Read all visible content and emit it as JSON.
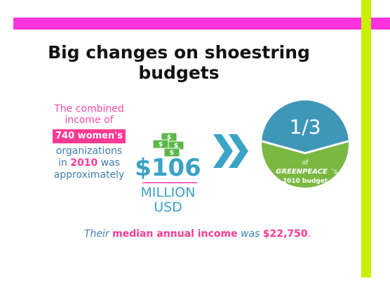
{
  "slide": {
    "title_line1": "Big changes on shoestring",
    "title_line2": "budgets",
    "left_text": {
      "line1": "The combined",
      "line2": "income of",
      "badge": "740 women's",
      "line3": "organizations",
      "line4_prefix": "in",
      "line4_year": "2010",
      "line4_suffix": "was",
      "line5": "approximately"
    },
    "amount": "$106",
    "unit_line1": "MILLION",
    "unit_line2": "USD",
    "circle": {
      "fraction": "1/3",
      "of_label": "of",
      "org_name": "GREENPEACE",
      "org_suffix": "'s",
      "budget_label": "2010 budget"
    },
    "bottom": {
      "word1": "Their",
      "highlight": "median annual income",
      "word2": "was",
      "value": "$22,750",
      "end": "."
    },
    "colors": {
      "magenta_bar": "#ff33dd",
      "lime_bar": "#c8f000",
      "accent_pink": "#ff3a93",
      "accent_blue": "#3f7fb0",
      "circle_blue": "#3f97b8",
      "circle_green": "#7ab842"
    }
  }
}
